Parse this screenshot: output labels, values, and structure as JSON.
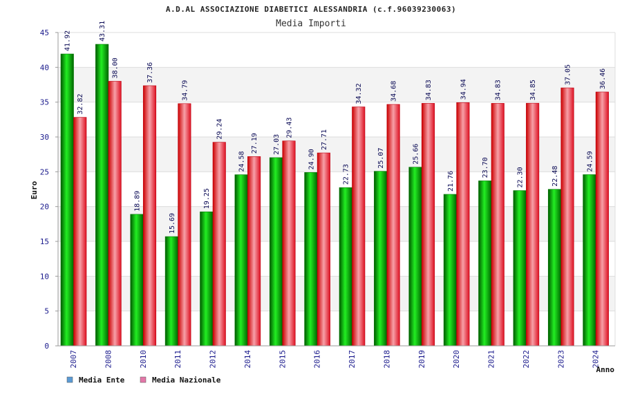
{
  "chart_data": {
    "type": "bar",
    "title": "A.D.AL ASSOCIAZIONE DIABETICI ALESSANDRIA (c.f.96039230063)",
    "subtitle": "Media Importi",
    "xlabel": "Anno",
    "ylabel": "Euro",
    "ylim": [
      0,
      45
    ],
    "yticks": [
      0,
      5,
      10,
      15,
      20,
      25,
      30,
      35,
      40,
      45
    ],
    "grid": true,
    "legend_position": "bottom-left",
    "categories": [
      "2007",
      "2008",
      "2010",
      "2011",
      "2012",
      "2014",
      "2015",
      "2016",
      "2017",
      "2018",
      "2019",
      "2020",
      "2021",
      "2022",
      "2023",
      "2024"
    ],
    "series": [
      {
        "name": "Media Ente",
        "color": "#00bb00",
        "legend_color": "#5b9bd5",
        "values": [
          41.92,
          43.31,
          18.89,
          15.69,
          19.25,
          24.58,
          27.03,
          24.9,
          22.73,
          25.07,
          25.66,
          21.76,
          23.7,
          22.3,
          22.48,
          24.59
        ],
        "labels": [
          "41.92",
          "43.31",
          "18.89",
          "15.69",
          "19.25",
          "24.58",
          "27.03",
          "24.90",
          "22.73",
          "25.07",
          "25.66",
          "21.76",
          "23.70",
          "22.30",
          "22.48",
          "24.59"
        ]
      },
      {
        "name": "Media Nazionale",
        "color": "#ee1c24",
        "legend_color": "#e377a8",
        "values": [
          32.82,
          38.0,
          37.36,
          34.79,
          29.24,
          27.19,
          29.43,
          27.71,
          34.32,
          34.68,
          34.83,
          34.94,
          34.83,
          34.85,
          37.05,
          36.46
        ],
        "labels": [
          "32.82",
          "38.00",
          "37.36",
          "34.79",
          "29.24",
          "27.19",
          "29.43",
          "27.71",
          "34.32",
          "34.68",
          "34.83",
          "34.94",
          "34.83",
          "34.85",
          "37.05",
          "36.46"
        ]
      }
    ]
  }
}
